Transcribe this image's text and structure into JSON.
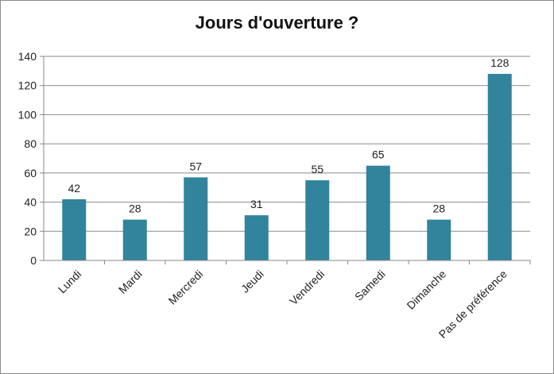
{
  "chart_data": {
    "type": "bar",
    "title": "Jours d'ouverture ?",
    "categories": [
      "Lundi",
      "Mardi",
      "Mercredi",
      "Jeudi",
      "Vendredi",
      "Samedi",
      "Dimanche",
      "Pas de préférence"
    ],
    "values": [
      42,
      28,
      57,
      31,
      55,
      65,
      28,
      128
    ],
    "data_labels": [
      "42",
      "28",
      "57",
      "31",
      "55",
      "65",
      "28",
      "128"
    ],
    "yticks": [
      "0",
      "20",
      "40",
      "60",
      "80",
      "100",
      "120",
      "140"
    ],
    "ylim": [
      0,
      140
    ],
    "bar_color": "#31849b",
    "grid": true,
    "legend": "none"
  }
}
